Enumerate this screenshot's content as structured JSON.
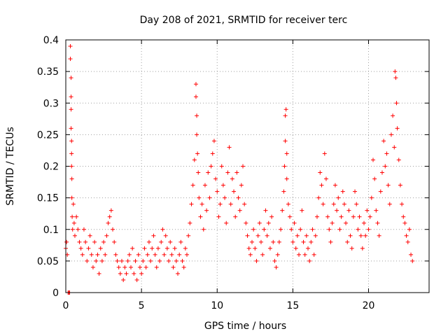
{
  "chart_data": {
    "type": "scatter",
    "title": "Day 208 of 2021, SRMTID for receiver terc",
    "xlabel": "GPS time / hours",
    "ylabel": "SRMTID / TECUs",
    "xlim": [
      0,
      24
    ],
    "ylim": [
      0,
      0.4
    ],
    "x_ticks": [
      0,
      5,
      10,
      15,
      20
    ],
    "y_ticks": [
      0,
      0.05,
      0.1,
      0.15,
      0.2,
      0.25,
      0.3,
      0.35,
      0.4
    ],
    "x_tick_labels": [
      "0",
      "5",
      "10",
      "15",
      "20"
    ],
    "y_tick_labels": [
      "0",
      "0.05",
      "0.1",
      "0.15",
      "0.2",
      "0.25",
      "0.3",
      "0.35",
      "0.4"
    ],
    "grid": true,
    "marker": "+",
    "color": "#ff0000",
    "series": [
      {
        "name": "terc",
        "points": [
          [
            0.0,
            0.07
          ],
          [
            0.05,
            0.08
          ],
          [
            0.1,
            0.06
          ],
          [
            0.15,
            0.0
          ],
          [
            0.2,
            0.0
          ],
          [
            0.25,
            0.0
          ],
          [
            0.3,
            0.39
          ],
          [
            0.3,
            0.37
          ],
          [
            0.35,
            0.34
          ],
          [
            0.35,
            0.31
          ],
          [
            0.35,
            0.29
          ],
          [
            0.35,
            0.26
          ],
          [
            0.38,
            0.24
          ],
          [
            0.38,
            0.22
          ],
          [
            0.38,
            0.2
          ],
          [
            0.4,
            0.18
          ],
          [
            0.4,
            0.15
          ],
          [
            0.42,
            0.12
          ],
          [
            0.45,
            0.1
          ],
          [
            0.5,
            0.14
          ],
          [
            0.55,
            0.11
          ],
          [
            0.6,
            0.09
          ],
          [
            0.7,
            0.12
          ],
          [
            0.8,
            0.1
          ],
          [
            0.9,
            0.08
          ],
          [
            1.0,
            0.07
          ],
          [
            1.1,
            0.06
          ],
          [
            1.2,
            0.1
          ],
          [
            1.3,
            0.08
          ],
          [
            1.4,
            0.05
          ],
          [
            1.5,
            0.07
          ],
          [
            1.6,
            0.09
          ],
          [
            1.7,
            0.06
          ],
          [
            1.8,
            0.04
          ],
          [
            1.9,
            0.08
          ],
          [
            2.0,
            0.05
          ],
          [
            2.1,
            0.06
          ],
          [
            2.2,
            0.03
          ],
          [
            2.3,
            0.07
          ],
          [
            2.4,
            0.05
          ],
          [
            2.5,
            0.08
          ],
          [
            2.6,
            0.06
          ],
          [
            2.7,
            0.09
          ],
          [
            2.8,
            0.11
          ],
          [
            2.9,
            0.12
          ],
          [
            3.0,
            0.13
          ],
          [
            3.1,
            0.1
          ],
          [
            3.2,
            0.08
          ],
          [
            3.3,
            0.06
          ],
          [
            3.4,
            0.05
          ],
          [
            3.5,
            0.04
          ],
          [
            3.6,
            0.03
          ],
          [
            3.7,
            0.05
          ],
          [
            3.8,
            0.02
          ],
          [
            3.9,
            0.04
          ],
          [
            4.0,
            0.03
          ],
          [
            4.1,
            0.05
          ],
          [
            4.2,
            0.06
          ],
          [
            4.3,
            0.04
          ],
          [
            4.4,
            0.07
          ],
          [
            4.5,
            0.03
          ],
          [
            4.6,
            0.05
          ],
          [
            4.7,
            0.02
          ],
          [
            4.8,
            0.06
          ],
          [
            4.9,
            0.04
          ],
          [
            5.0,
            0.03
          ],
          [
            5.1,
            0.05
          ],
          [
            5.2,
            0.07
          ],
          [
            5.3,
            0.04
          ],
          [
            5.4,
            0.06
          ],
          [
            5.5,
            0.08
          ],
          [
            5.6,
            0.05
          ],
          [
            5.7,
            0.07
          ],
          [
            5.8,
            0.09
          ],
          [
            5.9,
            0.06
          ],
          [
            6.0,
            0.04
          ],
          [
            6.1,
            0.07
          ],
          [
            6.2,
            0.05
          ],
          [
            6.3,
            0.08
          ],
          [
            6.4,
            0.1
          ],
          [
            6.5,
            0.06
          ],
          [
            6.6,
            0.09
          ],
          [
            6.7,
            0.07
          ],
          [
            6.8,
            0.05
          ],
          [
            6.9,
            0.08
          ],
          [
            7.0,
            0.06
          ],
          [
            7.1,
            0.04
          ],
          [
            7.2,
            0.07
          ],
          [
            7.3,
            0.05
          ],
          [
            7.4,
            0.03
          ],
          [
            7.5,
            0.06
          ],
          [
            7.6,
            0.08
          ],
          [
            7.7,
            0.05
          ],
          [
            7.8,
            0.04
          ],
          [
            7.9,
            0.07
          ],
          [
            8.0,
            0.06
          ],
          [
            8.1,
            0.09
          ],
          [
            8.2,
            0.11
          ],
          [
            8.3,
            0.14
          ],
          [
            8.4,
            0.17
          ],
          [
            8.5,
            0.21
          ],
          [
            8.6,
            0.33
          ],
          [
            8.6,
            0.31
          ],
          [
            8.65,
            0.28
          ],
          [
            8.65,
            0.25
          ],
          [
            8.7,
            0.22
          ],
          [
            8.75,
            0.19
          ],
          [
            8.8,
            0.15
          ],
          [
            8.9,
            0.12
          ],
          [
            9.0,
            0.14
          ],
          [
            9.1,
            0.1
          ],
          [
            9.2,
            0.17
          ],
          [
            9.3,
            0.13
          ],
          [
            9.4,
            0.19
          ],
          [
            9.5,
            0.15
          ],
          [
            9.6,
            0.2
          ],
          [
            9.7,
            0.22
          ],
          [
            9.8,
            0.24
          ],
          [
            9.9,
            0.18
          ],
          [
            10.0,
            0.16
          ],
          [
            10.1,
            0.12
          ],
          [
            10.2,
            0.14
          ],
          [
            10.3,
            0.2
          ],
          [
            10.4,
            0.17
          ],
          [
            10.5,
            0.15
          ],
          [
            10.6,
            0.11
          ],
          [
            10.7,
            0.19
          ],
          [
            10.8,
            0.23
          ],
          [
            10.9,
            0.14
          ],
          [
            11.0,
            0.18
          ],
          [
            11.1,
            0.16
          ],
          [
            11.2,
            0.12
          ],
          [
            11.3,
            0.19
          ],
          [
            11.4,
            0.15
          ],
          [
            11.5,
            0.13
          ],
          [
            11.6,
            0.17
          ],
          [
            11.7,
            0.2
          ],
          [
            11.8,
            0.14
          ],
          [
            11.9,
            0.11
          ],
          [
            12.0,
            0.09
          ],
          [
            12.1,
            0.07
          ],
          [
            12.2,
            0.06
          ],
          [
            12.3,
            0.08
          ],
          [
            12.4,
            0.1
          ],
          [
            12.5,
            0.07
          ],
          [
            12.6,
            0.05
          ],
          [
            12.7,
            0.09
          ],
          [
            12.8,
            0.11
          ],
          [
            12.9,
            0.08
          ],
          [
            13.0,
            0.06
          ],
          [
            13.1,
            0.1
          ],
          [
            13.2,
            0.13
          ],
          [
            13.3,
            0.09
          ],
          [
            13.4,
            0.11
          ],
          [
            13.5,
            0.07
          ],
          [
            13.6,
            0.12
          ],
          [
            13.7,
            0.08
          ],
          [
            13.8,
            0.05
          ],
          [
            13.9,
            0.04
          ],
          [
            14.0,
            0.06
          ],
          [
            14.1,
            0.08
          ],
          [
            14.2,
            0.1
          ],
          [
            14.3,
            0.13
          ],
          [
            14.4,
            0.16
          ],
          [
            14.45,
            0.2
          ],
          [
            14.5,
            0.24
          ],
          [
            14.5,
            0.28
          ],
          [
            14.55,
            0.29
          ],
          [
            14.6,
            0.22
          ],
          [
            14.6,
            0.18
          ],
          [
            14.7,
            0.14
          ],
          [
            14.8,
            0.12
          ],
          [
            14.9,
            0.1
          ],
          [
            15.0,
            0.08
          ],
          [
            15.1,
            0.11
          ],
          [
            15.2,
            0.07
          ],
          [
            15.3,
            0.09
          ],
          [
            15.4,
            0.06
          ],
          [
            15.5,
            0.1
          ],
          [
            15.6,
            0.13
          ],
          [
            15.7,
            0.08
          ],
          [
            15.8,
            0.06
          ],
          [
            15.9,
            0.09
          ],
          [
            16.0,
            0.07
          ],
          [
            16.1,
            0.05
          ],
          [
            16.2,
            0.08
          ],
          [
            16.3,
            0.1
          ],
          [
            16.4,
            0.06
          ],
          [
            16.5,
            0.09
          ],
          [
            16.6,
            0.12
          ],
          [
            16.7,
            0.15
          ],
          [
            16.8,
            0.19
          ],
          [
            16.9,
            0.17
          ],
          [
            17.0,
            0.14
          ],
          [
            17.1,
            0.22
          ],
          [
            17.2,
            0.18
          ],
          [
            17.3,
            0.12
          ],
          [
            17.4,
            0.1
          ],
          [
            17.5,
            0.08
          ],
          [
            17.6,
            0.11
          ],
          [
            17.7,
            0.14
          ],
          [
            17.8,
            0.17
          ],
          [
            17.9,
            0.13
          ],
          [
            18.0,
            0.15
          ],
          [
            18.1,
            0.1
          ],
          [
            18.2,
            0.12
          ],
          [
            18.3,
            0.16
          ],
          [
            18.4,
            0.14
          ],
          [
            18.5,
            0.11
          ],
          [
            18.6,
            0.08
          ],
          [
            18.7,
            0.13
          ],
          [
            18.8,
            0.09
          ],
          [
            18.9,
            0.07
          ],
          [
            19.0,
            0.12
          ],
          [
            19.1,
            0.16
          ],
          [
            19.2,
            0.14
          ],
          [
            19.3,
            0.1
          ],
          [
            19.4,
            0.12
          ],
          [
            19.5,
            0.09
          ],
          [
            19.6,
            0.07
          ],
          [
            19.7,
            0.11
          ],
          [
            19.8,
            0.09
          ],
          [
            19.9,
            0.13
          ],
          [
            20.0,
            0.1
          ],
          [
            20.1,
            0.12
          ],
          [
            20.2,
            0.15
          ],
          [
            20.3,
            0.21
          ],
          [
            20.4,
            0.18
          ],
          [
            20.5,
            0.13
          ],
          [
            20.6,
            0.11
          ],
          [
            20.7,
            0.09
          ],
          [
            20.8,
            0.16
          ],
          [
            20.9,
            0.19
          ],
          [
            21.0,
            0.24
          ],
          [
            21.1,
            0.2
          ],
          [
            21.2,
            0.22
          ],
          [
            21.3,
            0.17
          ],
          [
            21.4,
            0.14
          ],
          [
            21.5,
            0.25
          ],
          [
            21.6,
            0.28
          ],
          [
            21.7,
            0.23
          ],
          [
            21.75,
            0.35
          ],
          [
            21.8,
            0.34
          ],
          [
            21.85,
            0.3
          ],
          [
            21.9,
            0.26
          ],
          [
            22.0,
            0.21
          ],
          [
            22.1,
            0.17
          ],
          [
            22.2,
            0.14
          ],
          [
            22.3,
            0.12
          ],
          [
            22.4,
            0.11
          ],
          [
            22.5,
            0.09
          ],
          [
            22.6,
            0.08
          ],
          [
            22.7,
            0.1
          ],
          [
            22.8,
            0.06
          ],
          [
            22.9,
            0.05
          ]
        ]
      }
    ]
  }
}
